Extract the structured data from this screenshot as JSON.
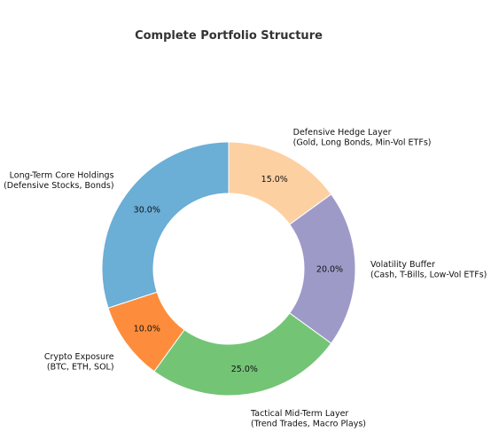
{
  "chart_data": {
    "type": "pie",
    "donut": true,
    "title": "Complete Portfolio Structure",
    "slices": [
      {
        "label_lines": [
          "Defensive Hedge Layer",
          "(Gold, Long Bonds, Min-Vol ETFs)"
        ],
        "value": 15.0,
        "pct_text": "15.0%",
        "color": "#fdd0a2"
      },
      {
        "label_lines": [
          "Volatility Buffer",
          "(Cash, T-Bills, Low-Vol ETFs)"
        ],
        "value": 20.0,
        "pct_text": "20.0%",
        "color": "#9e9ac8"
      },
      {
        "label_lines": [
          "Tactical Mid-Term Layer",
          "(Trend Trades, Macro Plays)"
        ],
        "value": 25.0,
        "pct_text": "25.0%",
        "color": "#74c476"
      },
      {
        "label_lines": [
          "Crypto Exposure",
          "(BTC, ETH, SOL)"
        ],
        "value": 10.0,
        "pct_text": "10.0%",
        "color": "#fd8d3c"
      },
      {
        "label_lines": [
          "Long-Term Core Holdings",
          "(Defensive Stocks, Bonds)"
        ],
        "value": 30.0,
        "pct_text": "30.0%",
        "color": "#6baed6"
      }
    ]
  }
}
